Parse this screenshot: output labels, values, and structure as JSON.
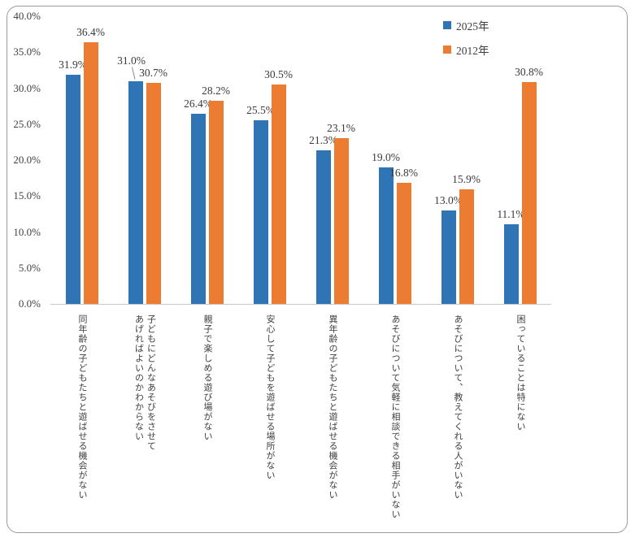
{
  "chart_data": {
    "type": "bar",
    "title": "",
    "xlabel": "",
    "ylabel": "",
    "categories": [
      {
        "lines": [
          "同年齢の子どもたちと遊ばせる機会がない"
        ]
      },
      {
        "lines": [
          "子どもにどんなあそびをさせて",
          "あげればよいのかわからない"
        ]
      },
      {
        "lines": [
          "親子で楽しめる遊び場がない"
        ]
      },
      {
        "lines": [
          "安心して子どもを遊ばせる場所がない"
        ]
      },
      {
        "lines": [
          "異年齢の子どもたちと遊ばせる機会がない"
        ]
      },
      {
        "lines": [
          "あそびについて気軽に相談できる相手がいない"
        ]
      },
      {
        "lines": [
          "あそびについて、教えてくれる人がいない"
        ]
      },
      {
        "lines": [
          "困っていることは特にない"
        ]
      }
    ],
    "series": [
      {
        "name": "2025年",
        "color": "#2F74B5",
        "values": [
          31.9,
          31.0,
          26.4,
          25.5,
          21.3,
          19.0,
          13.0,
          11.1
        ]
      },
      {
        "name": "2012年",
        "color": "#EC7C31",
        "values": [
          36.4,
          30.7,
          28.2,
          30.5,
          23.1,
          16.8,
          15.9,
          30.8
        ]
      }
    ],
    "ylim": [
      0,
      40
    ],
    "ytick_step": 5,
    "ytick_labels": [
      "0.0%",
      "5.0%",
      "10.0%",
      "15.0%",
      "20.0%",
      "25.0%",
      "30.0%",
      "35.0%",
      "40.0%"
    ],
    "grid": false,
    "legend_position": "top-right",
    "value_label_format": "0.0%",
    "value_label_position": "outside-end",
    "label_adjustments": [
      {
        "series": 0,
        "category": 1,
        "dx": -5,
        "dy": -13,
        "leader_line": true
      }
    ],
    "colors": {
      "axis_line": "#c9c9c9",
      "text": "#3f3f3f",
      "frame_border": "#9b9b9b",
      "leader_line": "#8c8c8c"
    }
  }
}
